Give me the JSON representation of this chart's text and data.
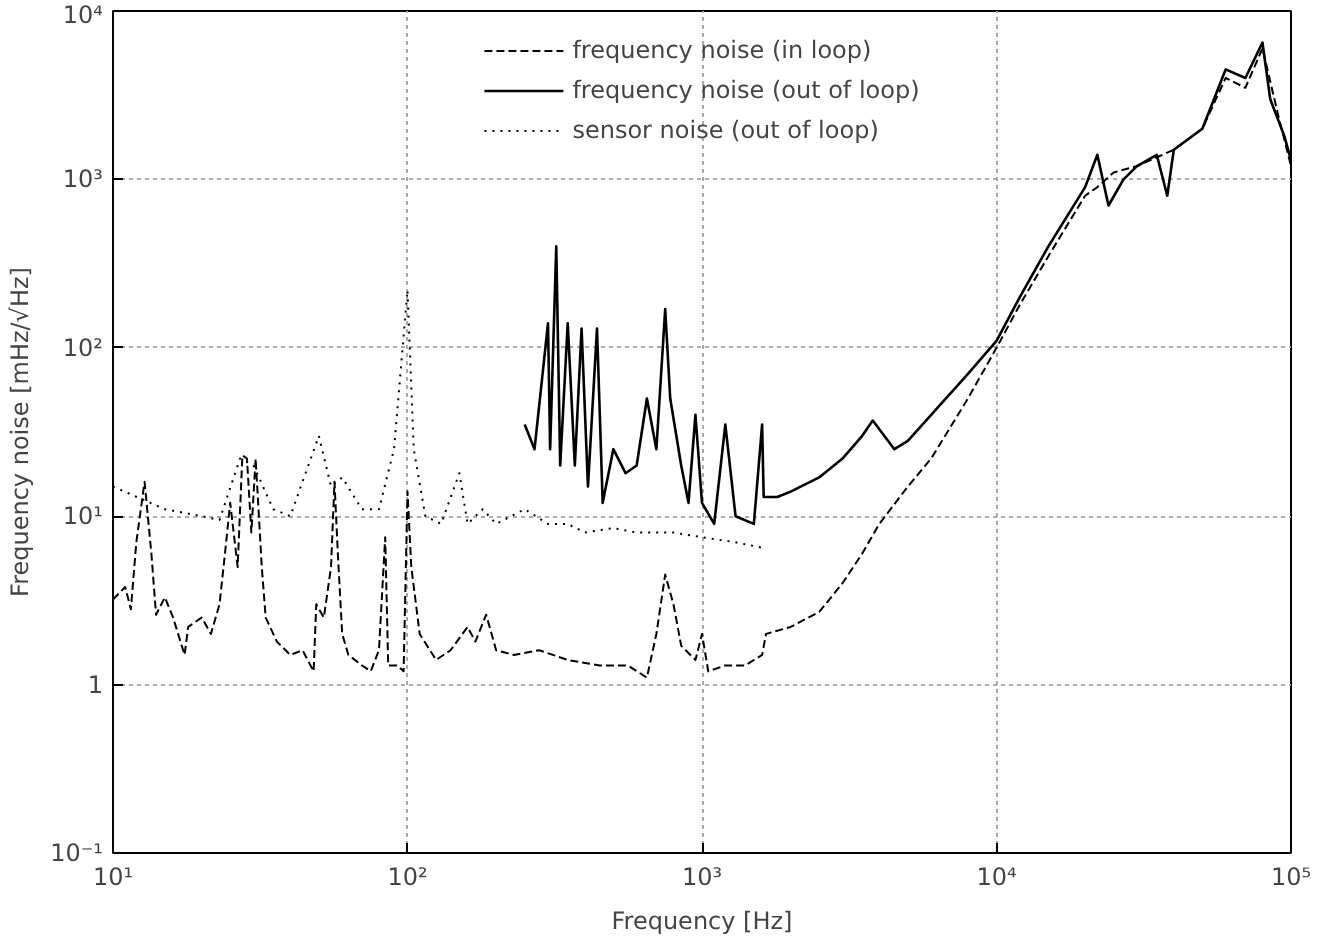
{
  "chart_data": {
    "type": "line",
    "xlabel": "Frequency [Hz]",
    "ylabel": "Frequency noise [mHz/√Hz]",
    "log": "xy",
    "grid": true,
    "legend": "top",
    "xlim": [
      10,
      100000
    ],
    "ylim": [
      0.1,
      10000
    ],
    "xticks": [
      {
        "value": 10,
        "label": "10¹"
      },
      {
        "value": 100,
        "label": "10²"
      },
      {
        "value": 1000,
        "label": "10³"
      },
      {
        "value": 10000,
        "label": "10⁴"
      },
      {
        "value": 100000,
        "label": "10⁵"
      }
    ],
    "yticks": [
      {
        "value": 0.1,
        "label": "10⁻¹"
      },
      1,
      {
        "value": 10,
        "label": "10¹"
      },
      {
        "value": 100,
        "label": "10²"
      },
      {
        "value": 1000,
        "label": "10³"
      },
      {
        "value": 10000,
        "label": "10⁴"
      }
    ],
    "series": [
      {
        "name": "frequency noise (in loop)",
        "color": "#000000",
        "line_style": "dashed",
        "x": [
          10,
          11,
          11.5,
          12,
          12.8,
          13.5,
          14,
          15,
          16,
          17.5,
          18,
          20,
          21.5,
          23,
          24,
          25,
          26.5,
          27.5,
          28.5,
          29.5,
          30.5,
          32,
          33,
          36,
          40,
          44,
          48,
          49,
          52,
          55,
          56.5,
          58,
          60,
          63,
          70,
          75,
          80,
          84,
          86,
          92,
          97,
          100,
          103,
          110,
          125,
          140,
          160,
          170,
          185,
          200,
          230,
          280,
          350,
          450,
          560,
          650,
          700,
          750,
          800,
          850,
          950,
          1000,
          1050,
          1200,
          1400,
          1600,
          1650,
          2000,
          2500,
          3000,
          3500,
          4000,
          5000,
          6000,
          8000,
          10000,
          12000,
          15000,
          20000,
          22000,
          25000,
          30000,
          40000,
          50000,
          60000,
          70000,
          80000,
          90000,
          100000
        ],
        "values": [
          3.2,
          3.8,
          2.8,
          7,
          16,
          6,
          2.6,
          3.3,
          2.5,
          1.5,
          2.2,
          2.5,
          2,
          3,
          6,
          12,
          5,
          23,
          22,
          8,
          22,
          5,
          2.5,
          1.8,
          1.5,
          1.6,
          1.2,
          3,
          2.5,
          5,
          16,
          6,
          2,
          1.5,
          1.3,
          1.2,
          1.6,
          7.5,
          1.3,
          1.3,
          1.2,
          14,
          5,
          2,
          1.4,
          1.6,
          2.2,
          1.8,
          2.6,
          1.6,
          1.5,
          1.6,
          1.4,
          1.3,
          1.3,
          1.1,
          2,
          4.5,
          3,
          1.7,
          1.4,
          2,
          1.2,
          1.3,
          1.3,
          1.5,
          2,
          2.2,
          2.7,
          4,
          6,
          9,
          15,
          22,
          50,
          100,
          180,
          350,
          800,
          900,
          1100,
          1200,
          1500,
          2000,
          4000,
          3500,
          6000,
          2500,
          1200
        ]
      },
      {
        "name": "frequency noise (out of loop)",
        "color": "#000000",
        "line_style": "solid",
        "x": [
          250,
          270,
          300,
          305,
          320,
          330,
          350,
          370,
          390,
          410,
          440,
          460,
          500,
          550,
          600,
          650,
          700,
          750,
          780,
          850,
          900,
          950,
          1000,
          1100,
          1200,
          1300,
          1500,
          1600,
          1620,
          1800,
          2000,
          2500,
          3000,
          3500,
          3800,
          4500,
          5000,
          6000,
          8000,
          10000,
          12000,
          15000,
          20000,
          22000,
          24000,
          27000,
          30000,
          35000,
          38000,
          40000,
          50000,
          60000,
          70000,
          80000,
          85000,
          95000,
          100000
        ],
        "values": [
          35,
          25,
          140,
          25,
          400,
          20,
          140,
          20,
          130,
          15,
          130,
          12,
          25,
          18,
          20,
          50,
          25,
          170,
          50,
          20,
          12,
          40,
          12,
          9,
          35,
          10,
          9,
          35,
          13,
          13,
          14,
          17,
          22,
          30,
          37,
          25,
          28,
          40,
          70,
          110,
          200,
          400,
          900,
          1400,
          700,
          1000,
          1200,
          1400,
          800,
          1500,
          2000,
          4500,
          4000,
          6500,
          3000,
          1800,
          1300
        ]
      },
      {
        "name": "sensor noise (out of loop)",
        "color": "#000000",
        "line_style": "dotted",
        "x": [
          10,
          15,
          20,
          23,
          27,
          30,
          35,
          40,
          50,
          55,
          60,
          70,
          80,
          90,
          100,
          105,
          115,
          130,
          150,
          160,
          180,
          200,
          250,
          300,
          350,
          400,
          500,
          600,
          800,
          1000,
          1300,
          1600
        ],
        "values": [
          15,
          11,
          10,
          9.5,
          22,
          20,
          11,
          10,
          30,
          15,
          17,
          11,
          11,
          25,
          220,
          25,
          10,
          9,
          18,
          9,
          11,
          9,
          11,
          9,
          9,
          8,
          8.5,
          8,
          8,
          7.5,
          7,
          6.5
        ]
      }
    ]
  }
}
